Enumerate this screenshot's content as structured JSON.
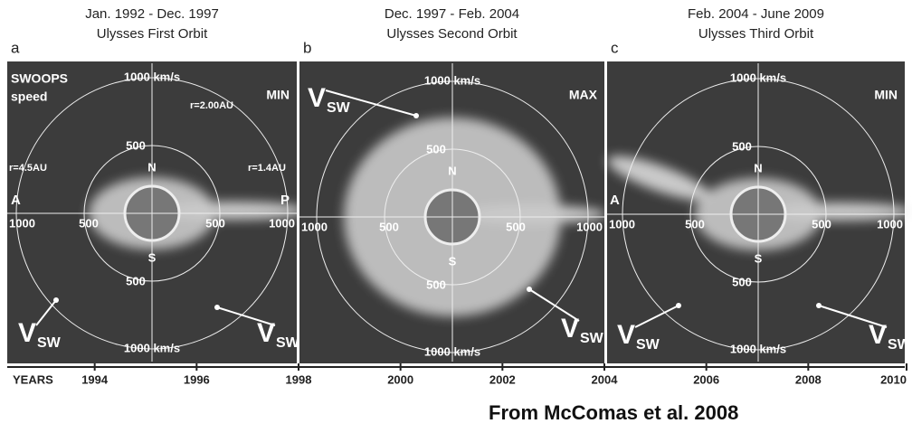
{
  "panels": [
    {
      "letter": "a",
      "dates": "Jan. 1992  -  Dec. 1997",
      "orbit": "Ulysses First Orbit",
      "activity": "MIN",
      "top_label": "1000  km/s",
      "bottom_label": "1000  km/s",
      "north": "N",
      "south": "S",
      "left_end": "1000",
      "right_end": "1000",
      "ring_labels": [
        "500",
        "500",
        "500",
        "500"
      ],
      "vsw": [
        {
          "v": "V",
          "sub": "SW"
        },
        {
          "v": "V",
          "sub": "SW"
        }
      ],
      "extra_labels": [
        "SWOOPS",
        "speed",
        "r=2.00AU",
        "r=4.5AU",
        "r=1.4AU",
        "A",
        "P"
      ]
    },
    {
      "letter": "b",
      "dates": "Dec. 1997 - Feb. 2004",
      "orbit": "Ulysses Second Orbit",
      "activity": "MAX",
      "top_label": "1000  km/s",
      "bottom_label": "1000  km/s",
      "north": "N",
      "south": "S",
      "left_end": "1000",
      "right_end": "1000",
      "ring_labels": [
        "500",
        "500",
        "500",
        "500"
      ],
      "vsw": [
        {
          "v": "V",
          "sub": "SW"
        },
        {
          "v": "V",
          "sub": "SW"
        }
      ],
      "extra_labels": []
    },
    {
      "letter": "c",
      "dates": "Feb. 2004  - June 2009",
      "orbit": "Ulysses Third Orbit",
      "activity": "MIN",
      "top_label": "1000  km/s",
      "bottom_label": "1000  km/s",
      "north": "N",
      "south": "S",
      "left_end": "1000",
      "right_end": "1000",
      "ring_labels": [
        "500",
        "500",
        "500",
        "500"
      ],
      "vsw": [
        {
          "v": "V",
          "sub": "SW"
        },
        {
          "v": "V",
          "sub": "SW"
        }
      ],
      "extra_labels": [
        "A"
      ]
    }
  ],
  "timeline": {
    "label": "YEARS",
    "ticks": [
      1994,
      1996,
      1998,
      2000,
      2002,
      2004,
      2006,
      2008,
      2010
    ]
  },
  "caption": "From McComas et al. 2008"
}
